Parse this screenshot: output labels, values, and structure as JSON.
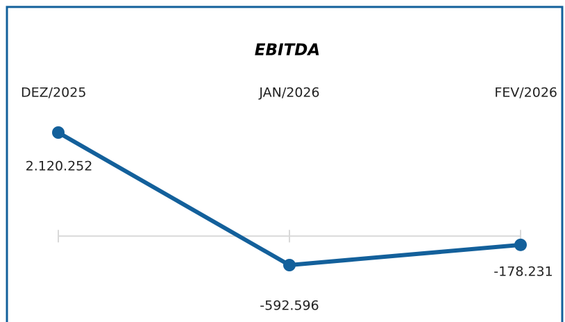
{
  "chart_data": {
    "type": "line",
    "title": "EBITDA",
    "categories": [
      "DEZ/2025",
      "JAN/2026",
      "FEV/2026"
    ],
    "values": [
      2120252,
      -592596,
      -178231
    ],
    "value_labels": [
      "2.120.252",
      "-592.596",
      "-178.231"
    ],
    "color": "#13609b"
  }
}
